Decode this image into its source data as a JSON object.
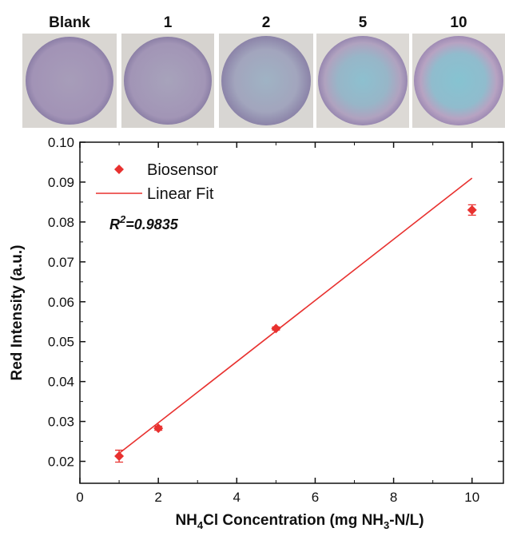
{
  "chart_data": {
    "type": "scatter",
    "image_labels": [
      "Blank",
      "1",
      "2",
      "5",
      "10"
    ],
    "x_label": [
      "NH",
      "4",
      "Cl Concentration (mg NH",
      "3",
      "-N/L)"
    ],
    "y_label": "Red Intensity (a.u.)",
    "annotation": {
      "base": "R",
      "sup": "2",
      "rest": "=0.9835"
    },
    "xlim": [
      0,
      10.8
    ],
    "ylim": [
      0.0145,
      0.1
    ],
    "xticks": [
      0,
      2,
      4,
      6,
      8,
      10
    ],
    "yticks": [
      {
        "value": 0.1,
        "label": "0.10"
      },
      0.09,
      0.08,
      0.07,
      0.06,
      0.05,
      0.04,
      0.03,
      0.02
    ],
    "legend": "upper-left",
    "series": [
      {
        "name": "Biosensor",
        "kind": "points",
        "color": "#e8312f",
        "x": [
          1,
          2,
          5,
          10
        ],
        "values": [
          0.0213,
          0.0283,
          0.0533,
          0.083
        ],
        "errors": [
          0.0015,
          0.0005,
          0.0004,
          0.0013
        ]
      },
      {
        "name": "Linear Fit",
        "kind": "line",
        "color": "#e8312f",
        "x": [
          1,
          10
        ],
        "values": [
          0.022,
          0.091
        ]
      }
    ]
  }
}
